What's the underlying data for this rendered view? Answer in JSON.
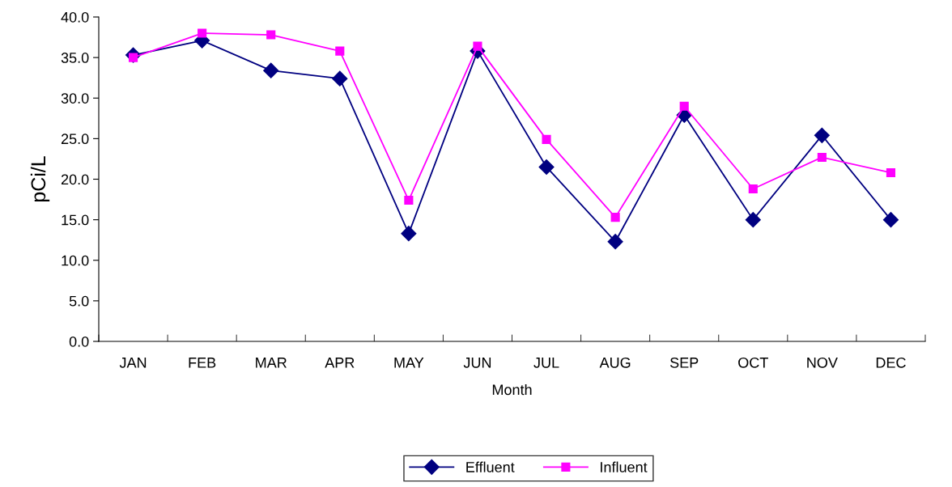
{
  "chart_data": {
    "type": "line",
    "xlabel": "Month",
    "ylabel": "pCi/L",
    "categories": [
      "JAN",
      "FEB",
      "MAR",
      "APR",
      "MAY",
      "JUN",
      "JUL",
      "AUG",
      "SEP",
      "OCT",
      "NOV",
      "DEC"
    ],
    "series": [
      {
        "name": "Effluent",
        "color": "#000080",
        "marker": "diamond",
        "values": [
          35.3,
          37.1,
          33.4,
          32.4,
          13.3,
          35.8,
          21.5,
          12.3,
          27.9,
          15.0,
          25.4,
          15.0
        ]
      },
      {
        "name": "Influent",
        "color": "#ff00ff",
        "marker": "square",
        "values": [
          35.0,
          38.0,
          37.8,
          35.8,
          17.4,
          36.4,
          24.9,
          15.3,
          29.0,
          18.8,
          22.7,
          20.8
        ]
      }
    ],
    "ylim": [
      0,
      40
    ],
    "yticks": [
      {
        "value": 0,
        "label": "0.0"
      },
      {
        "value": 5,
        "label": "5.0"
      },
      {
        "value": 10,
        "label": "10.0"
      },
      {
        "value": 15,
        "label": "15.0"
      },
      {
        "value": 20,
        "label": "20.0"
      },
      {
        "value": 25,
        "label": "25.0"
      },
      {
        "value": 30,
        "label": "30.0"
      },
      {
        "value": 35,
        "label": "35.0"
      },
      {
        "value": 40,
        "label": "40.0"
      }
    ],
    "grid": false,
    "legend": "bottom",
    "line_style": "solid"
  }
}
